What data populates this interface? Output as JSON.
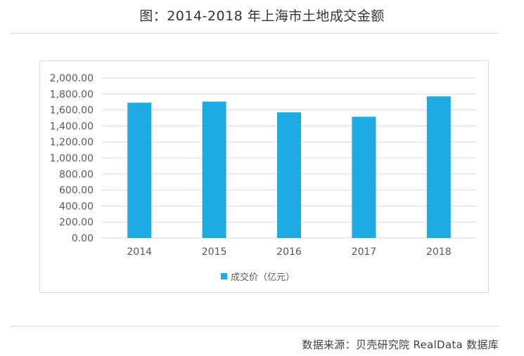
{
  "title": "图：2014-2018 年上海市土地成交金额",
  "source": "数据来源：贝壳研究院 RealData 数据库",
  "chart_data": {
    "type": "bar",
    "categories": [
      "2014",
      "2015",
      "2016",
      "2017",
      "2018"
    ],
    "series": [
      {
        "name": "成交价（亿元）",
        "values": [
          1690,
          1705,
          1570,
          1515,
          1770
        ],
        "color": "#1dabe3"
      }
    ],
    "title": "",
    "xlabel": "",
    "ylabel": "",
    "ylim": [
      0,
      2000
    ],
    "yticks": [
      "0.00",
      "200.00",
      "400.00",
      "600.00",
      "800.00",
      "1,000.00",
      "1,200.00",
      "1,400.00",
      "1,600.00",
      "1,800.00",
      "2,000.00"
    ],
    "grid": true,
    "legend_position": "bottom"
  }
}
